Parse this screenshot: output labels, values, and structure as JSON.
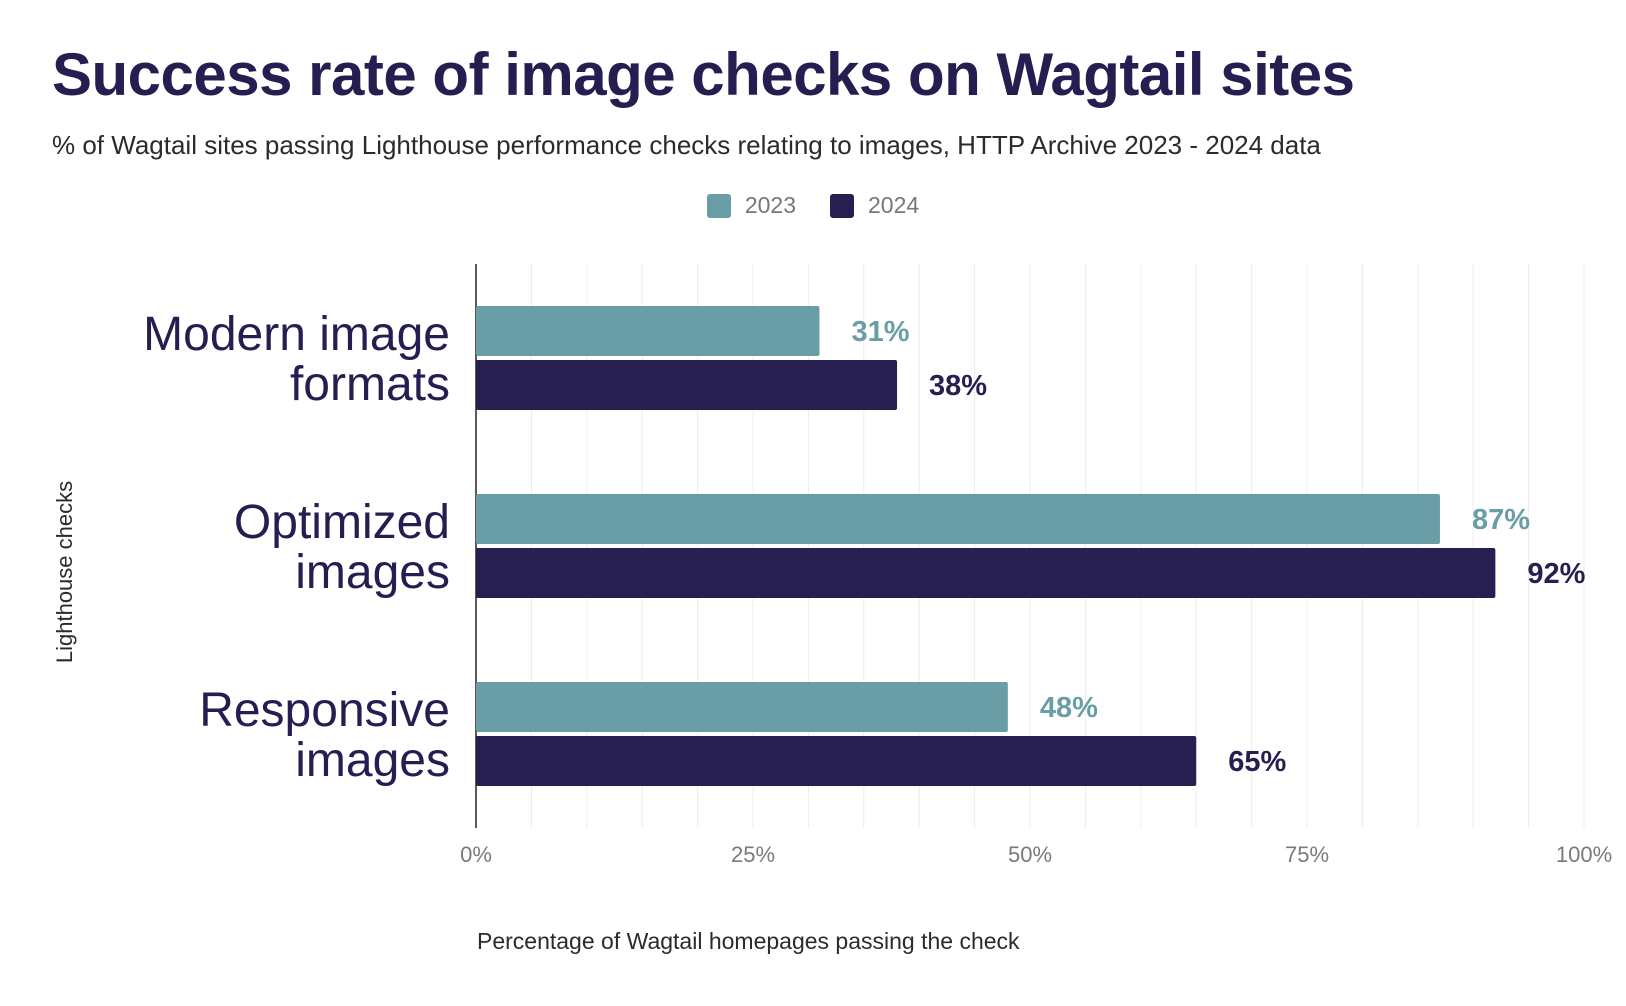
{
  "chart_data": {
    "type": "bar",
    "orientation": "horizontal",
    "title": "Success rate of image checks on Wagtail sites",
    "subtitle": "% of Wagtail sites passing Lighthouse performance checks relating to images, HTTP Archive 2023 - 2024 data",
    "xlabel": "Percentage of Wagtail homepages passing the check",
    "ylabel": "Lighthouse checks",
    "categories": [
      [
        "Modern image",
        "formats"
      ],
      [
        "Optimized",
        "images"
      ],
      [
        "Responsive",
        "images"
      ]
    ],
    "series": [
      {
        "name": "2023",
        "color": "#6a9ea6",
        "values": [
          31,
          87,
          48
        ],
        "labels": [
          "31%",
          "87%",
          "48%"
        ]
      },
      {
        "name": "2024",
        "color": "#271f50",
        "values": [
          38,
          92,
          65
        ],
        "labels": [
          "38%",
          "92%",
          "65%"
        ]
      }
    ],
    "xlim": [
      0,
      100
    ],
    "xticks": [
      0,
      25,
      50,
      75,
      100
    ],
    "xtick_labels": [
      "0%",
      "25%",
      "50%",
      "75%",
      "100%"
    ],
    "grid": true,
    "legend_position": "top-center"
  }
}
